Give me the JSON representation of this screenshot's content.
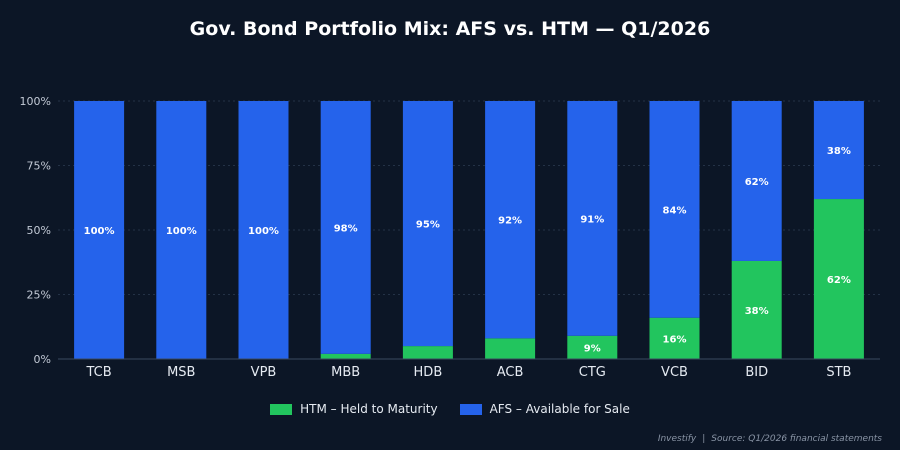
{
  "title": "Gov. Bond Portfolio Mix: AFS vs. HTM — Q1/2026",
  "colors": {
    "background": "#0c1626",
    "htm": "#22c55e",
    "afs": "#2563eb",
    "grid": "#243246",
    "text": "#e6ebf2"
  },
  "chart_data": {
    "type": "bar",
    "stacked": true,
    "categories": [
      "TCB",
      "MSB",
      "VPB",
      "MBB",
      "HDB",
      "ACB",
      "CTG",
      "VCB",
      "BID",
      "STB"
    ],
    "series": [
      {
        "name": "HTM – Held to Maturity",
        "values": [
          0,
          0,
          0,
          2,
          5,
          8,
          9,
          16,
          38,
          62
        ],
        "data_labels": [
          "",
          "",
          "",
          "",
          "",
          "",
          "9%",
          "16%",
          "38%",
          "62%"
        ]
      },
      {
        "name": "AFS – Available for Sale",
        "values": [
          100,
          100,
          100,
          98,
          95,
          92,
          91,
          84,
          62,
          38
        ],
        "data_labels": [
          "100%",
          "100%",
          "100%",
          "98%",
          "95%",
          "92%",
          "91%",
          "84%",
          "62%",
          "38%"
        ]
      }
    ],
    "y_ticks": [
      "0%",
      "25%",
      "50%",
      "75%",
      "100%"
    ],
    "ylim": [
      0,
      100
    ],
    "grid": true,
    "legend_position": "bottom"
  },
  "legend": [
    {
      "label": "HTM – Held to Maturity"
    },
    {
      "label": "AFS – Available for Sale"
    }
  ],
  "footer": {
    "source_brand": "Investify",
    "separator": "|",
    "source_text": "Source: Q1/2026 financial statements"
  }
}
